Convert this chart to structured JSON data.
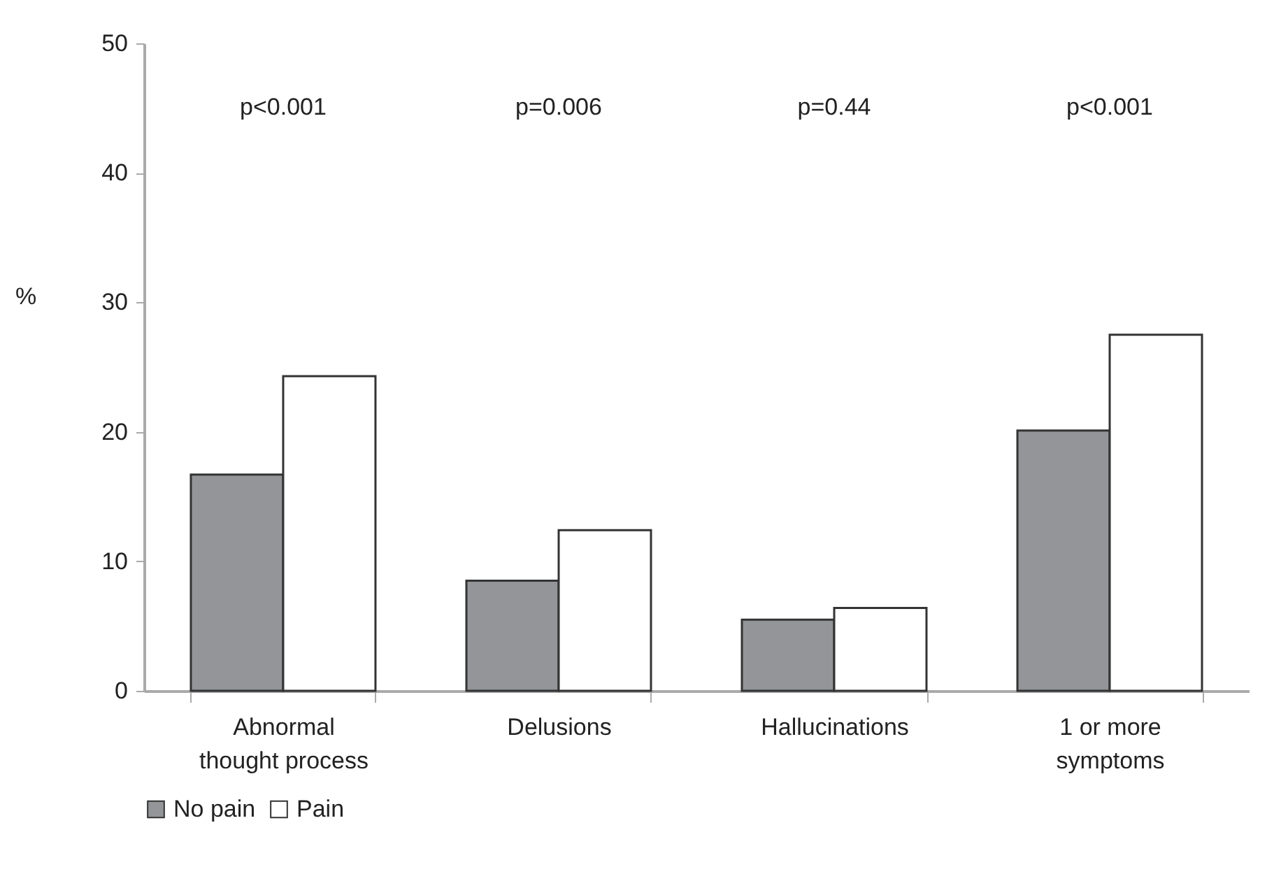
{
  "chart_data": {
    "type": "bar",
    "ylabel": "%",
    "categories": [
      "Abnormal thought process",
      "Delusions",
      "Hallucinations",
      "1 or more symptoms"
    ],
    "series": [
      {
        "name": "No pain",
        "color": "#939598",
        "values": [
          16.7,
          8.5,
          5.5,
          20.1
        ]
      },
      {
        "name": "Pain",
        "color": "#ffffff",
        "values": [
          24.3,
          12.4,
          6.4,
          27.5
        ]
      }
    ],
    "ylim": [
      0,
      50
    ],
    "yticks": [
      0,
      10,
      20,
      30,
      40,
      50
    ],
    "grid": false,
    "legend": "bottom",
    "annotations": [
      "p<0.001",
      "p=0.006",
      "p=0.44",
      "p<0.001"
    ]
  }
}
